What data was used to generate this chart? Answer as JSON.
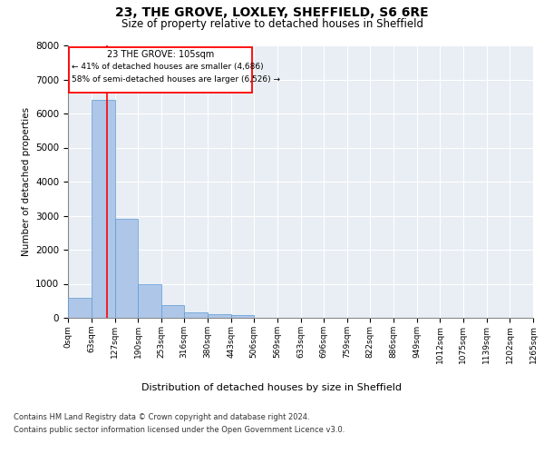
{
  "title1": "23, THE GROVE, LOXLEY, SHEFFIELD, S6 6RE",
  "title2": "Size of property relative to detached houses in Sheffield",
  "xlabel": "Distribution of detached houses by size in Sheffield",
  "ylabel": "Number of detached properties",
  "bin_edges": [
    0,
    63,
    127,
    190,
    253,
    316,
    380,
    443,
    506,
    569,
    633,
    696,
    759,
    822,
    886,
    949,
    1012,
    1075,
    1139,
    1202,
    1265
  ],
  "bar_heights": [
    600,
    6400,
    2900,
    1000,
    380,
    160,
    100,
    80,
    0,
    0,
    0,
    0,
    0,
    0,
    0,
    0,
    0,
    0,
    0,
    0
  ],
  "bar_color": "#aec6e8",
  "bar_edge_color": "#5b9bd5",
  "background_color": "#e8eef4",
  "red_line_x": 105,
  "annotation_line1": "23 THE GROVE: 105sqm",
  "annotation_line2": "← 41% of detached houses are smaller (4,686)",
  "annotation_line3": "58% of semi-detached houses are larger (6,526) →",
  "footer1": "Contains HM Land Registry data © Crown copyright and database right 2024.",
  "footer2": "Contains public sector information licensed under the Open Government Licence v3.0.",
  "ylim": [
    0,
    8000
  ],
  "yticks": [
    0,
    1000,
    2000,
    3000,
    4000,
    5000,
    6000,
    7000,
    8000
  ]
}
